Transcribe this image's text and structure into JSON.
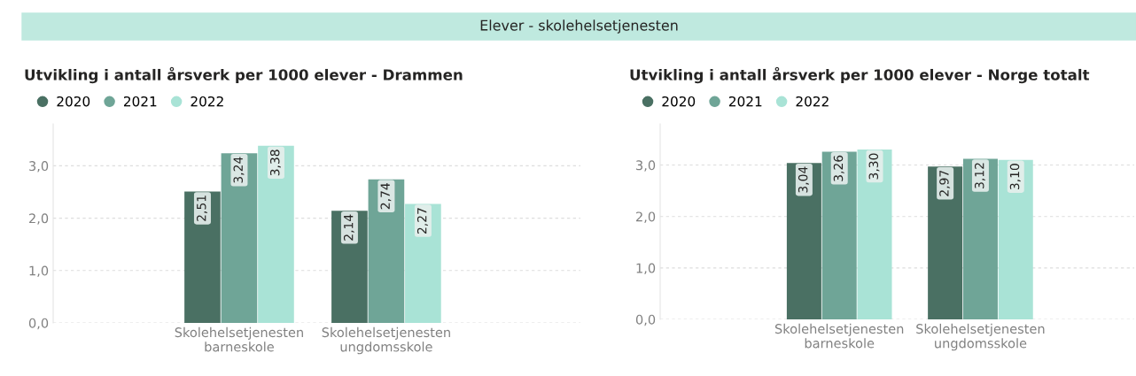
{
  "chart_data": [
    {
      "type": "bar",
      "title": "Utvikling i antall årsverk per 1000 elever - Drammen",
      "annotations": [
        "Elever - skolehelsetjenesten"
      ],
      "categories": [
        "Skolehelsetjenesten\nbarneskole",
        "Skolehelsetjenesten\nungdomsskole"
      ],
      "series": [
        {
          "name": "2020",
          "color": "#4a7063",
          "values": [
            2.51,
            2.14
          ],
          "value_labels": [
            "2,51",
            "2,14"
          ]
        },
        {
          "name": "2021",
          "color": "#6fa597",
          "values": [
            3.24,
            2.74
          ],
          "value_labels": [
            "3,24",
            "2,74"
          ]
        },
        {
          "name": "2022",
          "color": "#a9e3d6",
          "values": [
            3.38,
            2.27
          ],
          "value_labels": [
            "3,38",
            "2,27"
          ]
        }
      ],
      "ylim": [
        0,
        3.8
      ],
      "yticks": [
        {
          "value": 0,
          "label": "0,0"
        },
        {
          "value": 1,
          "label": "1,0"
        },
        {
          "value": 2,
          "label": "2,0"
        },
        {
          "value": 3,
          "label": "3,0"
        }
      ],
      "grid": "y",
      "legend": "top left"
    },
    {
      "type": "bar",
      "title": "Utvikling i antall årsverk per 1000 elever - Norge totalt",
      "categories": [
        "Skolehelsetjenesten\nbarneskole",
        "Skolehelsetjenesten\nungdomsskole"
      ],
      "series": [
        {
          "name": "2020",
          "color": "#4a7063",
          "values": [
            3.04,
            2.97
          ],
          "value_labels": [
            "3,04",
            "2,97"
          ]
        },
        {
          "name": "2021",
          "color": "#6fa597",
          "values": [
            3.26,
            3.12
          ],
          "value_labels": [
            "3,26",
            "3,12"
          ]
        },
        {
          "name": "2022",
          "color": "#a9e3d6",
          "values": [
            3.3,
            3.1
          ],
          "value_labels": [
            "3,30",
            "3,10"
          ]
        }
      ],
      "ylim": [
        0,
        3.8
      ],
      "yticks": [
        {
          "value": 0,
          "label": "0,0"
        },
        {
          "value": 1,
          "label": "1,0"
        },
        {
          "value": 2,
          "label": "2,0"
        },
        {
          "value": 3,
          "label": "3,0"
        }
      ],
      "grid": "y",
      "legend": "top left"
    }
  ]
}
